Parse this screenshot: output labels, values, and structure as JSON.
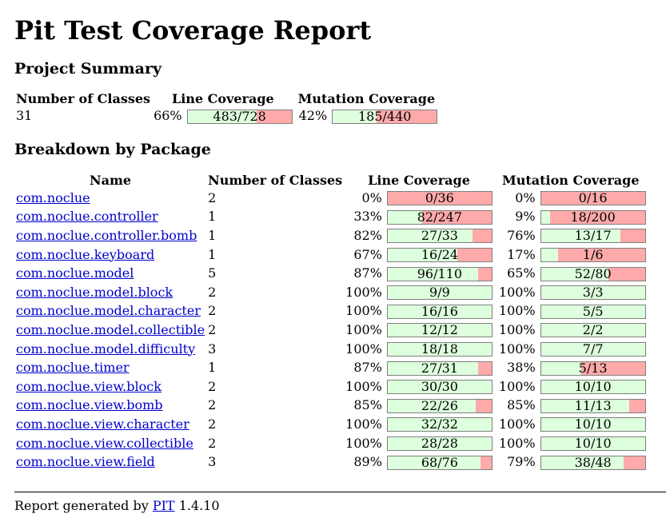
{
  "title": "Pit Test Coverage Report",
  "summary": {
    "heading": "Project Summary",
    "headers": {
      "classes": "Number of Classes",
      "line": "Line Coverage",
      "mutation": "Mutation Coverage"
    },
    "classes": "31",
    "line": {
      "pct": "66%",
      "ratio": "483/728",
      "fraction": 0.663
    },
    "mutation": {
      "pct": "42%",
      "ratio": "185/440",
      "fraction": 0.42
    }
  },
  "breakdown": {
    "heading": "Breakdown by Package",
    "headers": {
      "name": "Name",
      "classes": "Number of Classes",
      "line": "Line Coverage",
      "mutation": "Mutation Coverage"
    },
    "rows": [
      {
        "name": "com.noclue",
        "classes": "2",
        "line_pct": "0%",
        "line_ratio": "0/36",
        "line_fraction": 0.0,
        "mut_pct": "0%",
        "mut_ratio": "0/16",
        "mut_fraction": 0.0
      },
      {
        "name": "com.noclue.controller",
        "classes": "1",
        "line_pct": "33%",
        "line_ratio": "82/247",
        "line_fraction": 0.332,
        "mut_pct": "9%",
        "mut_ratio": "18/200",
        "mut_fraction": 0.09
      },
      {
        "name": "com.noclue.controller.bomb",
        "classes": "1",
        "line_pct": "82%",
        "line_ratio": "27/33",
        "line_fraction": 0.818,
        "mut_pct": "76%",
        "mut_ratio": "13/17",
        "mut_fraction": 0.765
      },
      {
        "name": "com.noclue.keyboard",
        "classes": "1",
        "line_pct": "67%",
        "line_ratio": "16/24",
        "line_fraction": 0.667,
        "mut_pct": "17%",
        "mut_ratio": "1/6",
        "mut_fraction": 0.167
      },
      {
        "name": "com.noclue.model",
        "classes": "5",
        "line_pct": "87%",
        "line_ratio": "96/110",
        "line_fraction": 0.873,
        "mut_pct": "65%",
        "mut_ratio": "52/80",
        "mut_fraction": 0.65
      },
      {
        "name": "com.noclue.model.block",
        "classes": "2",
        "line_pct": "100%",
        "line_ratio": "9/9",
        "line_fraction": 1.0,
        "mut_pct": "100%",
        "mut_ratio": "3/3",
        "mut_fraction": 1.0
      },
      {
        "name": "com.noclue.model.character",
        "classes": "2",
        "line_pct": "100%",
        "line_ratio": "16/16",
        "line_fraction": 1.0,
        "mut_pct": "100%",
        "mut_ratio": "5/5",
        "mut_fraction": 1.0
      },
      {
        "name": "com.noclue.model.collectible",
        "classes": "2",
        "line_pct": "100%",
        "line_ratio": "12/12",
        "line_fraction": 1.0,
        "mut_pct": "100%",
        "mut_ratio": "2/2",
        "mut_fraction": 1.0
      },
      {
        "name": "com.noclue.model.difficulty",
        "classes": "3",
        "line_pct": "100%",
        "line_ratio": "18/18",
        "line_fraction": 1.0,
        "mut_pct": "100%",
        "mut_ratio": "7/7",
        "mut_fraction": 1.0
      },
      {
        "name": "com.noclue.timer",
        "classes": "1",
        "line_pct": "87%",
        "line_ratio": "27/31",
        "line_fraction": 0.871,
        "mut_pct": "38%",
        "mut_ratio": "5/13",
        "mut_fraction": 0.385
      },
      {
        "name": "com.noclue.view.block",
        "classes": "2",
        "line_pct": "100%",
        "line_ratio": "30/30",
        "line_fraction": 1.0,
        "mut_pct": "100%",
        "mut_ratio": "10/10",
        "mut_fraction": 1.0
      },
      {
        "name": "com.noclue.view.bomb",
        "classes": "2",
        "line_pct": "85%",
        "line_ratio": "22/26",
        "line_fraction": 0.846,
        "mut_pct": "85%",
        "mut_ratio": "11/13",
        "mut_fraction": 0.846
      },
      {
        "name": "com.noclue.view.character",
        "classes": "2",
        "line_pct": "100%",
        "line_ratio": "32/32",
        "line_fraction": 1.0,
        "mut_pct": "100%",
        "mut_ratio": "10/10",
        "mut_fraction": 1.0
      },
      {
        "name": "com.noclue.view.collectible",
        "classes": "2",
        "line_pct": "100%",
        "line_ratio": "28/28",
        "line_fraction": 1.0,
        "mut_pct": "100%",
        "mut_ratio": "10/10",
        "mut_fraction": 1.0
      },
      {
        "name": "com.noclue.view.field",
        "classes": "3",
        "line_pct": "89%",
        "line_ratio": "68/76",
        "line_fraction": 0.895,
        "mut_pct": "79%",
        "mut_ratio": "38/48",
        "mut_fraction": 0.792
      }
    ]
  },
  "footer": {
    "prefix": "Report generated by",
    "link": "PIT",
    "version": "1.4.10"
  },
  "colors": {
    "covered": "#ddffdd",
    "uncovered": "#ffaaaa",
    "link": "#0000cc"
  }
}
